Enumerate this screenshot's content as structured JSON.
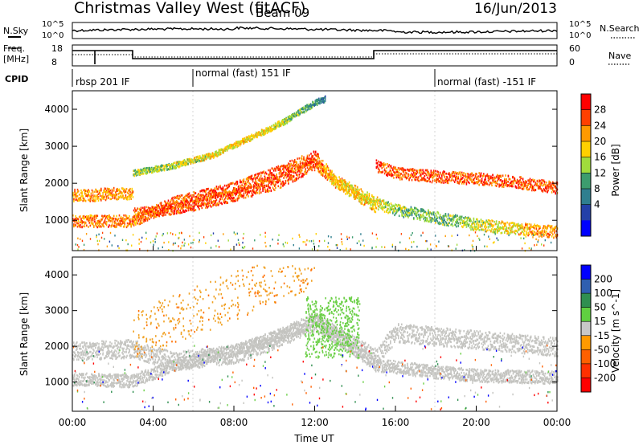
{
  "header": {
    "title": "Christmas Valley West (fitACF)",
    "beam": "Beam 09",
    "date": "16/Jun/2013"
  },
  "summary_panels": {
    "nsky_label": "N.Sky",
    "nsearch_label": "N.Search",
    "nsky_ticks": [
      "10^5",
      "10^0"
    ],
    "nsearch_ticks": [
      "10^5",
      "10^0"
    ],
    "freq_label_1": "Freq.",
    "freq_label_2": "[MHz]",
    "freq_ticks": [
      "18",
      "8"
    ],
    "nave_label": "Nave",
    "nave_ticks": [
      "60",
      "0"
    ],
    "cpid_label": "CPID",
    "cpid_segments": [
      {
        "label": "rbsp 201 IF",
        "start": 0,
        "end": 6
      },
      {
        "label": "normal (fast) 151 IF",
        "start": 6,
        "end": 18
      },
      {
        "label": "normal (fast) -151 IF",
        "start": 18,
        "end": 24
      }
    ]
  },
  "chart_data": [
    {
      "type": "heatmap",
      "title": "Power",
      "xlabel": "",
      "ylabel": "Slant Range [km]",
      "xlim": [
        0,
        24
      ],
      "ylim": [
        180,
        4500
      ],
      "yticks": [
        1000,
        2000,
        3000,
        4000
      ],
      "colorbar_label": "Power [dB]",
      "colorbar_ticks": [
        "28",
        "24",
        "20",
        "16",
        "12",
        "8",
        "4"
      ],
      "colorbar_colors": [
        "#ff0000",
        "#ff4000",
        "#ff9a00",
        "#ffd000",
        "#a0dc3c",
        "#3c9c6e",
        "#2f7f8f",
        "#2440a8",
        "#0000ff"
      ],
      "bands": [
        {
          "name_hint": "lower",
          "x": [
            0,
            1,
            2,
            3,
            3.01,
            4,
            6,
            8,
            10,
            11,
            12,
            12.9,
            13.5,
            15,
            15.01,
            16,
            18,
            20,
            22,
            24
          ],
          "y": [
            1700,
            1700,
            1750,
            1750,
            1200,
            1250,
            1450,
            1700,
            2000,
            2250,
            2550,
            2100,
            1900,
            1400,
            2500,
            2300,
            2200,
            2150,
            2050,
            1900
          ],
          "power": [
            22,
            22,
            22,
            22,
            24,
            26,
            26,
            26,
            26,
            26,
            24,
            20,
            20,
            20,
            28,
            26,
            26,
            26,
            26,
            26
          ]
        },
        {
          "name_hint": "middle",
          "x": [
            0,
            3,
            5,
            8,
            10,
            12,
            13,
            15,
            16,
            18,
            20,
            22,
            24
          ],
          "y": [
            1000,
            1000,
            1500,
            1900,
            2300,
            2750,
            2100,
            1500,
            1300,
            1100,
            900,
            800,
            700
          ],
          "power": [
            24,
            24,
            26,
            26,
            26,
            26,
            20,
            18,
            14,
            12,
            16,
            20,
            24
          ]
        },
        {
          "name_hint": "upper",
          "x": [
            3,
            5,
            7,
            9,
            10.5,
            12,
            12.5
          ],
          "y": [
            2300,
            2500,
            2800,
            3300,
            3700,
            4200,
            4300
          ],
          "power": [
            14,
            16,
            18,
            20,
            16,
            10,
            6
          ]
        }
      ]
    },
    {
      "type": "heatmap",
      "title": "Velocity",
      "xlabel": "Time UT",
      "ylabel": "Slant Range [km]",
      "xlim": [
        0,
        24
      ],
      "xticks": [
        "00:00",
        "04:00",
        "08:00",
        "12:00",
        "16:00",
        "20:00",
        "00:00"
      ],
      "ylim": [
        180,
        4500
      ],
      "yticks": [
        1000,
        2000,
        3000,
        4000
      ],
      "colorbar_label": "Velocity [m s^-1]",
      "colorbar_ticks": [
        "200",
        "100",
        "50",
        "15",
        "-15",
        "-50",
        "-100",
        "-200"
      ],
      "colorbar_colors": [
        "#0000ff",
        "#2f5fb0",
        "#2f8f50",
        "#60d040",
        "#c8c8c8",
        "#ff9a00",
        "#ff6000",
        "#ff3000",
        "#ff0000"
      ],
      "ground_scatter": [
        {
          "x": [
            0,
            3,
            5,
            8,
            10,
            12,
            15,
            16,
            18,
            20,
            22,
            24
          ],
          "y": [
            1900,
            1950,
            1600,
            1800,
            2200,
            2700,
            1700,
            2400,
            2300,
            2200,
            2100,
            2000
          ]
        },
        {
          "x": [
            0,
            3,
            5,
            8,
            10,
            12,
            15,
            18,
            20,
            24
          ],
          "y": [
            1100,
            1050,
            1500,
            1900,
            2250,
            2750,
            1500,
            1300,
            1200,
            1150
          ]
        }
      ],
      "positive_patch": {
        "x": [
          11.5,
          14.2
        ],
        "y": [
          1700,
          3400
        ],
        "velocity": 50
      },
      "negative_scatter": {
        "x": [
          3,
          12
        ],
        "y": [
          1800,
          4200
        ],
        "velocity": -75
      }
    }
  ]
}
